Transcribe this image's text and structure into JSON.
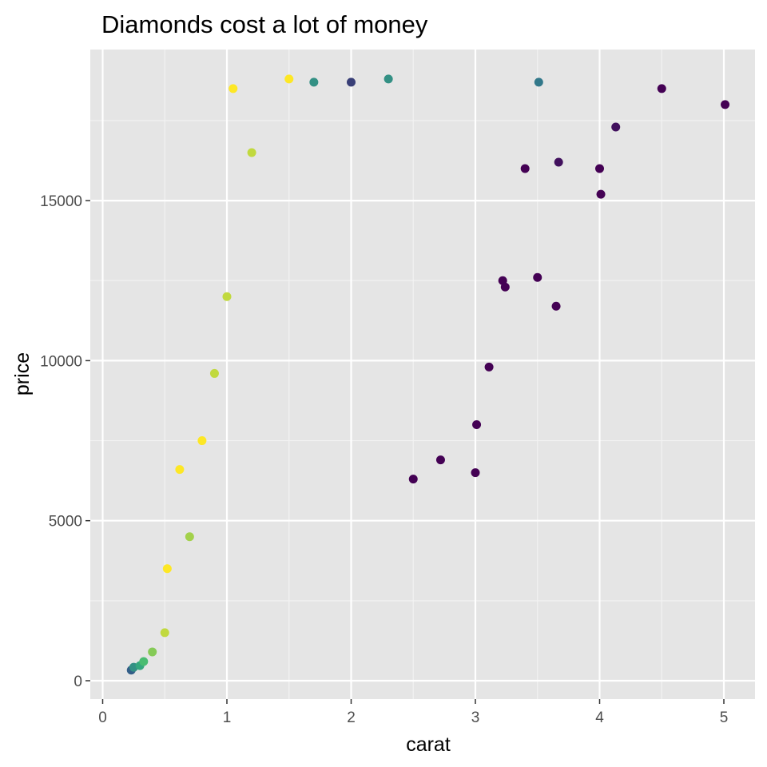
{
  "chart_data": {
    "type": "scatter",
    "title": "Diamonds cost a lot of money",
    "xlabel": "carat",
    "ylabel": "price",
    "xlim": [
      0,
      5.25
    ],
    "ylim": [
      -500,
      19300
    ],
    "x_ticks": [
      0,
      1,
      2,
      3,
      4,
      5
    ],
    "y_ticks": [
      0,
      5000,
      10000,
      15000
    ],
    "x_tick_labels": [
      "0",
      "1",
      "2",
      "3",
      "4",
      "5"
    ],
    "y_tick_labels": [
      "0",
      "5000",
      "10000",
      "15000"
    ],
    "grid": true,
    "legend": "none",
    "color_scale": [
      "#440154",
      "#31688e",
      "#35b779",
      "#fde725"
    ],
    "points": [
      {
        "x": 0.23,
        "y": 330,
        "c": 0.3
      },
      {
        "x": 0.25,
        "y": 420,
        "c": 0.5
      },
      {
        "x": 0.3,
        "y": 470,
        "c": 0.6
      },
      {
        "x": 0.33,
        "y": 600,
        "c": 0.7
      },
      {
        "x": 0.4,
        "y": 900,
        "c": 0.8
      },
      {
        "x": 0.5,
        "y": 1500,
        "c": 0.9
      },
      {
        "x": 0.52,
        "y": 3500,
        "c": 1.0
      },
      {
        "x": 0.62,
        "y": 6600,
        "c": 1.0
      },
      {
        "x": 0.7,
        "y": 4500,
        "c": 0.85
      },
      {
        "x": 0.8,
        "y": 7500,
        "c": 1.0
      },
      {
        "x": 0.9,
        "y": 9600,
        "c": 0.9
      },
      {
        "x": 1.0,
        "y": 12000,
        "c": 0.9
      },
      {
        "x": 1.05,
        "y": 18500,
        "c": 1.0
      },
      {
        "x": 1.2,
        "y": 16500,
        "c": 0.9
      },
      {
        "x": 1.5,
        "y": 18800,
        "c": 1.0
      },
      {
        "x": 1.7,
        "y": 18700,
        "c": 0.5
      },
      {
        "x": 2.0,
        "y": 18700,
        "c": 0.2
      },
      {
        "x": 2.3,
        "y": 18800,
        "c": 0.5
      },
      {
        "x": 2.5,
        "y": 6300,
        "c": 0.0
      },
      {
        "x": 2.72,
        "y": 6900,
        "c": 0.0
      },
      {
        "x": 3.0,
        "y": 6500,
        "c": 0.0
      },
      {
        "x": 3.01,
        "y": 8000,
        "c": 0.0
      },
      {
        "x": 3.11,
        "y": 9800,
        "c": 0.0
      },
      {
        "x": 3.22,
        "y": 12500,
        "c": 0.0
      },
      {
        "x": 3.24,
        "y": 12300,
        "c": 0.0
      },
      {
        "x": 3.4,
        "y": 16000,
        "c": 0.0
      },
      {
        "x": 3.5,
        "y": 12600,
        "c": 0.0
      },
      {
        "x": 3.51,
        "y": 18700,
        "c": 0.4
      },
      {
        "x": 3.65,
        "y": 11700,
        "c": 0.0
      },
      {
        "x": 3.67,
        "y": 16200,
        "c": 0.05
      },
      {
        "x": 4.0,
        "y": 16000,
        "c": 0.0
      },
      {
        "x": 4.01,
        "y": 15200,
        "c": 0.0
      },
      {
        "x": 4.13,
        "y": 17300,
        "c": 0.05
      },
      {
        "x": 4.5,
        "y": 18500,
        "c": 0.0
      },
      {
        "x": 5.01,
        "y": 18000,
        "c": 0.0
      }
    ]
  }
}
